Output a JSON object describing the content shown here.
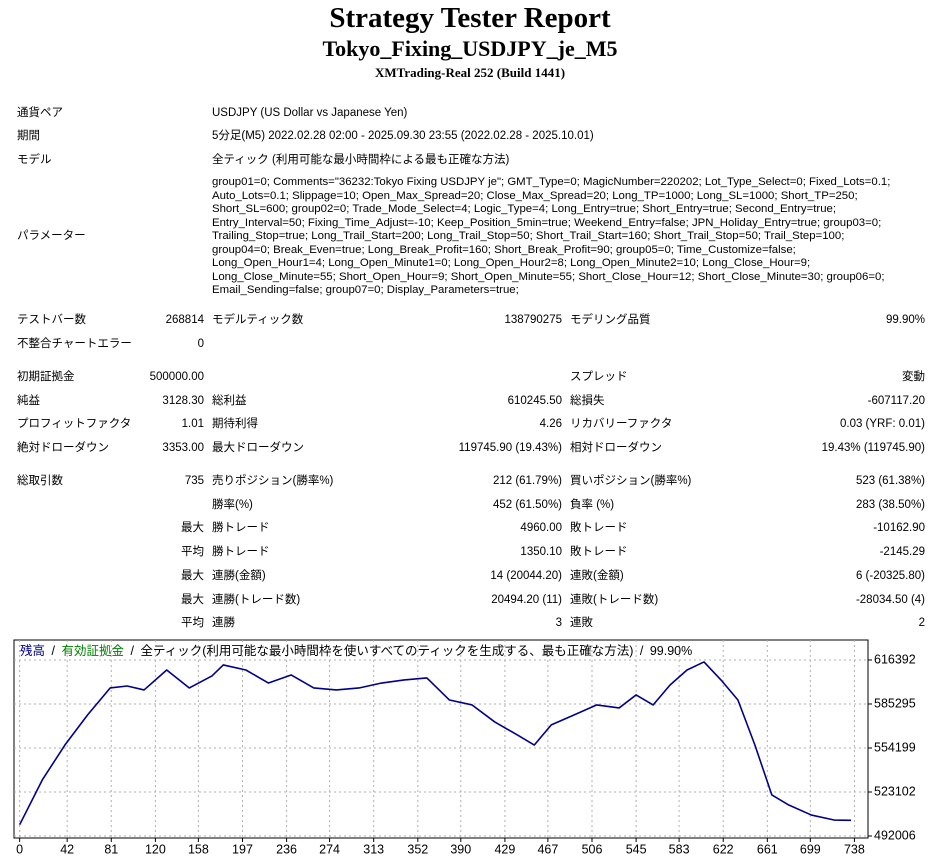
{
  "header": {
    "title": "Strategy Tester Report",
    "subtitle": "Tokyo_Fixing_USDJPY_je_M5",
    "server": "XMTrading-Real 252 (Build 1441)"
  },
  "info": [
    {
      "label": "通貨ペア",
      "value": "USDJPY (US Dollar vs Japanese Yen)"
    },
    {
      "label": "期間",
      "value": "5分足(M5) 2022.02.28 02:00 - 2025.09.30 23:55 (2022.02.28 - 2025.10.01)"
    },
    {
      "label": "モデル",
      "value": "全ティック (利用可能な最小時間枠による最も正確な方法)"
    }
  ],
  "parameters": {
    "label": "パラメーター",
    "lines": [
      "group01=0; Comments=\"36232:Tokyo Fixing USDJPY je\"; GMT_Type=0; MagicNumber=220202; Lot_Type_Select=0; Fixed_Lots=0.1;",
      "Auto_Lots=0.1; Slippage=10; Open_Max_Spread=20; Close_Max_Spread=20; Long_TP=1000; Long_SL=1000; Short_TP=250;",
      "Short_SL=600; group02=0; Trade_Mode_Select=4; Logic_Type=4; Long_Entry=true; Short_Entry=true; Second_Entry=true;",
      "Entry_Interval=50; Fixing_Time_Adjust=-10; Keep_Position_5min=true; Weekend_Entry=false; JPN_Holiday_Entry=true; group03=0;",
      "Trailing_Stop=true; Long_Trail_Start=200; Long_Trail_Stop=50; Short_Trail_Start=160; Short_Trail_Stop=50; Trail_Step=100;",
      "group04=0; Break_Even=true; Long_Break_Profit=160; Short_Break_Profit=90; group05=0; Time_Customize=false;",
      "Long_Open_Hour1=4; Long_Open_Minute1=0; Long_Open_Hour2=8; Long_Open_Minute2=10; Long_Close_Hour=9;",
      "Long_Close_Minute=55; Short_Open_Hour=9; Short_Open_Minute=55; Short_Close_Hour=12; Short_Close_Minute=30; group06=0;",
      "Email_Sending=false; group07=0; Display_Parameters=true;"
    ]
  },
  "stats": [
    [
      [
        "テストバー数",
        "268814",
        "モデルティック数",
        "138790275",
        "モデリング品質",
        "99.90%"
      ],
      [
        "不整合チャートエラー",
        "0",
        null,
        null,
        null,
        null
      ]
    ],
    [
      [
        "初期証拠金",
        "500000.00",
        null,
        null,
        "スプレッド",
        "変動"
      ],
      [
        "純益",
        "3128.30",
        "総利益",
        "610245.50",
        "総損失",
        "-607117.20"
      ],
      [
        "プロフィットファクタ",
        "1.01",
        "期待利得",
        "4.26",
        "リカバリーファクタ",
        "0.03 (YRF: 0.01)"
      ],
      [
        "絶対ドローダウン",
        "3353.00",
        "最大ドローダウン",
        "119745.90 (19.43%)",
        "相対ドローダウン",
        "19.43% (119745.90)"
      ]
    ],
    [
      [
        "総取引数",
        "735",
        "売りポジション(勝率%)",
        "212 (61.79%)",
        "買いポジション(勝率%)",
        "523 (61.38%)"
      ],
      [
        null,
        null,
        "勝率(%)",
        "452 (61.50%)",
        "負率 (%)",
        "283 (38.50%)"
      ],
      [
        null,
        "最大",
        "勝トレード",
        "4960.00",
        "敗トレード",
        "-10162.90"
      ],
      [
        null,
        "平均",
        "勝トレード",
        "1350.10",
        "敗トレード",
        "-2145.29"
      ],
      [
        null,
        "最大",
        "連勝(金額)",
        "14 (20044.20)",
        "連敗(金額)",
        "6 (-20325.80)"
      ],
      [
        null,
        "最大",
        "連勝(トレード数)",
        "20494.20 (11)",
        "連敗(トレード数)",
        "-28034.50 (4)"
      ],
      [
        null,
        "平均",
        "連勝",
        "3",
        "連敗",
        "2"
      ]
    ]
  ],
  "chart_data": {
    "type": "line",
    "separator": "/",
    "equity": {
      "name": "有効証拠金",
      "color": "#008000"
    },
    "caption": "全ティック(利用可能な最小時間枠を使いすべてのティックを生成する、最も正確な方法)",
    "quality": "99.90%",
    "x": [
      0,
      20,
      40,
      60,
      80,
      95,
      110,
      130,
      150,
      170,
      180,
      200,
      220,
      240,
      260,
      280,
      300,
      320,
      340,
      360,
      380,
      400,
      420,
      440,
      455,
      470,
      490,
      510,
      530,
      545,
      560,
      575,
      590,
      605,
      620,
      635,
      650,
      665,
      680,
      700,
      720,
      735
    ],
    "series": [
      {
        "name": "残高",
        "color": "#00008b",
        "values": [
          500000,
          531600,
          556300,
          577500,
          596600,
          598000,
          595200,
          609300,
          596600,
          605100,
          612900,
          609300,
          600100,
          605800,
          596600,
          595200,
          596600,
          600100,
          602300,
          603700,
          588100,
          584600,
          572600,
          563400,
          556300,
          570500,
          577500,
          584600,
          582500,
          591700,
          584600,
          598700,
          609300,
          615000,
          602300,
          588100,
          556300,
          521000,
          513900,
          506800,
          503300,
          503128
        ]
      }
    ],
    "xlim": [
      -5,
      750
    ],
    "ylim": [
      490600,
      630500
    ],
    "xticks": [
      0,
      42,
      81,
      120,
      158,
      197,
      236,
      274,
      313,
      352,
      390,
      429,
      467,
      506,
      545,
      583,
      622,
      661,
      699,
      738
    ],
    "yticks": [
      616392,
      585295,
      554199,
      523102,
      492006
    ],
    "grid": true
  }
}
